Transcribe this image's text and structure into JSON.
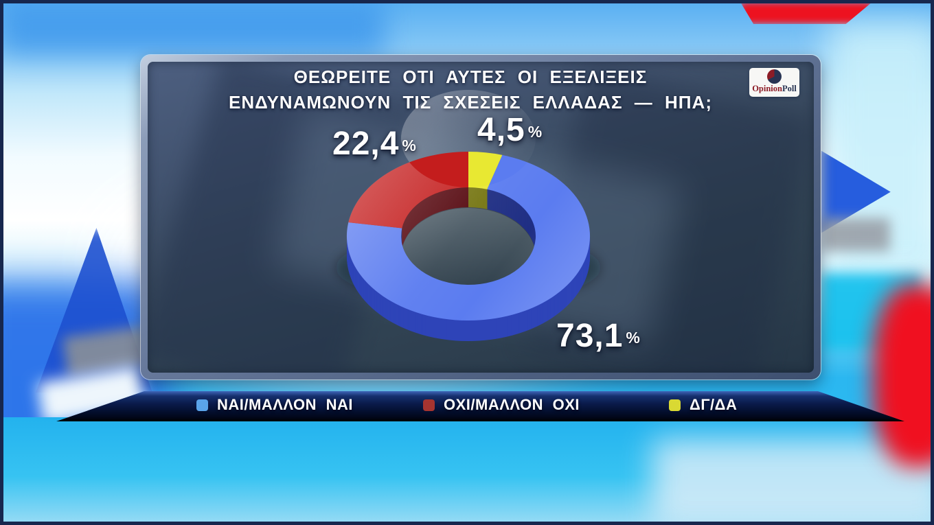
{
  "header": {
    "title_line1": "ΘΕΩΡΕΙΤΕ ΟΤΙ ΑΥΤΕΣ ΟΙ ΕΞΕΛΙΞΕΙΣ",
    "title_line2": "ΕΝΔΥΝΑΜΩΝΟΥΝ ΤΙΣ ΣΧΕΣΕΙΣ ΕΛΛΑΔΑΣ — ΗΠΑ;"
  },
  "logo": {
    "name": "OpinionPoll",
    "text_primary": "Opinion",
    "text_secondary": "Poll",
    "primary_color": "#8c1c26",
    "secondary_color": "#283453"
  },
  "chart_data": {
    "type": "pie",
    "style": "3d-donut",
    "unit": "%",
    "direction": "clockwise",
    "start_angle_deg": 0,
    "question": "ΘΕΩΡΕΙΤΕ ΟΤΙ ΑΥΤΕΣ ΟΙ ΕΞΕΛΙΞΕΙΣ ΕΝΔΥΝΑΜΩΝΟΥΝ ΤΙΣ ΣΧΕΣΕΙΣ ΕΛΛΑΔΑΣ — ΗΠΑ;",
    "percent_sign": "%",
    "legend_position": "bottom",
    "slices": [
      {
        "label": "ΔΓ/ΔΑ",
        "value": 4.5,
        "display": "4,5",
        "color": "#e8e832",
        "side_color": "#a9a916"
      },
      {
        "label": "ΝΑΙ/ΜΑΛΛΟΝ ΝΑΙ",
        "value": 73.1,
        "display": "73,1",
        "color": "#5b7cf0",
        "side_color": "#2e44b8"
      },
      {
        "label": "ΟΧΙ/ΜΑΛΛΟΝ ΟΧΙ",
        "value": 22.4,
        "display": "22,4",
        "color": "#c41d1d",
        "side_color": "#7c0d12"
      }
    ]
  },
  "legend": {
    "items": [
      {
        "label": "ΝΑΙ/ΜΑΛΛΟΝ ΝΑΙ",
        "color": "#5aa4ea"
      },
      {
        "label": "ΟΧΙ/ΜΑΛΛΟΝ ΟΧΙ",
        "color": "#a63430"
      },
      {
        "label": "ΔΓ/ΔΑ",
        "color": "#d9d933"
      }
    ]
  }
}
